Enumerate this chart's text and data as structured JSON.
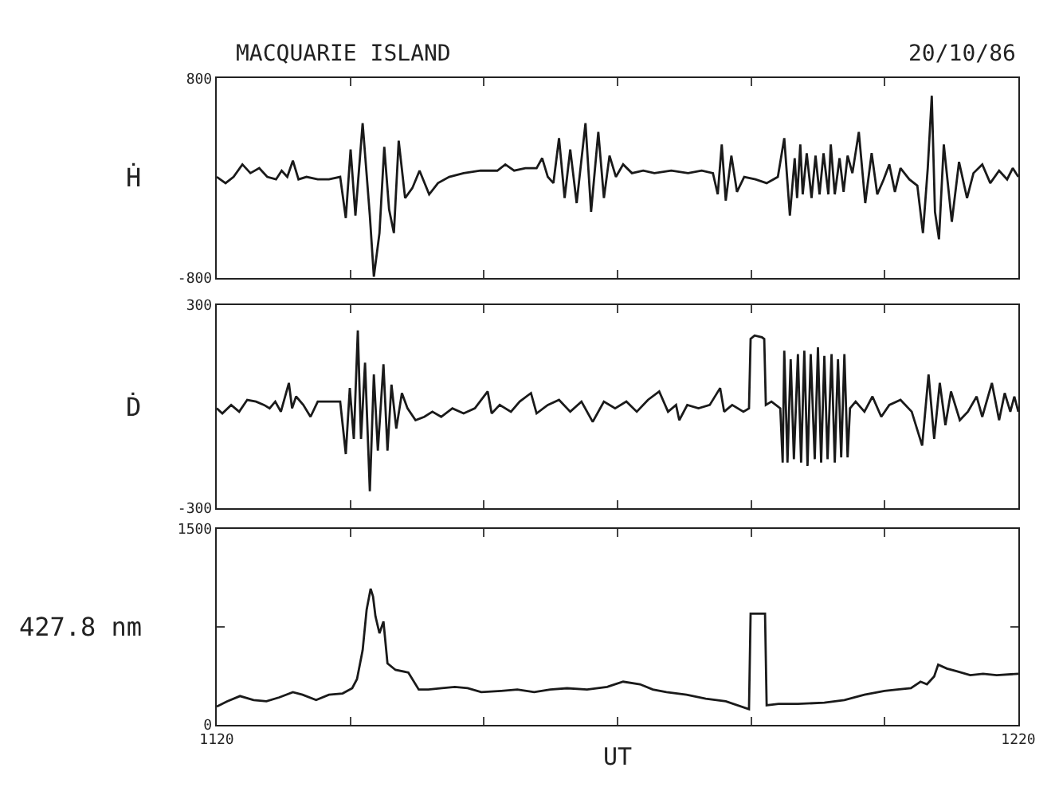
{
  "chart_data": [
    {
      "type": "line",
      "title": "MACQUARIE ISLAND",
      "annotations": [
        "20/10/86"
      ],
      "ylabel": "Ḣ",
      "tick_labels": "y",
      "marker": "none",
      "x": [
        1120.0,
        1121.1,
        1122.1,
        1123.2,
        1124.2,
        1125.3,
        1126.3,
        1127.4,
        1128.1,
        1128.8,
        1129.5,
        1130.2,
        1131.2,
        1132.6,
        1134.0,
        1135.4,
        1136.1,
        1136.7,
        1137.3,
        1138.2,
        1139.1,
        1139.6,
        1140.3,
        1140.9,
        1141.5,
        1142.1,
        1142.7,
        1143.5,
        1144.4,
        1145.3,
        1146.5,
        1147.6,
        1149.0,
        1150.8,
        1152.9,
        1155.0,
        1156.0,
        1157.1,
        1158.5,
        1159.9,
        1160.6,
        1161.3,
        1162.0,
        1162.7,
        1163.4,
        1164.1,
        1164.9,
        1166.0,
        1166.7,
        1167.6,
        1168.3,
        1169.0,
        1169.8,
        1170.7,
        1171.8,
        1173.2,
        1174.6,
        1176.7,
        1178.8,
        1180.5,
        1181.9,
        1182.5,
        1183.0,
        1183.5,
        1184.2,
        1184.9,
        1185.8,
        1187.2,
        1188.6,
        1190.0,
        1190.8,
        1191.5,
        1192.1,
        1192.4,
        1192.8,
        1193.1,
        1193.6,
        1194.2,
        1194.7,
        1195.2,
        1195.7,
        1196.3,
        1196.6,
        1197.1,
        1197.7,
        1198.2,
        1198.7,
        1199.3,
        1200.1,
        1200.9,
        1201.7,
        1202.4,
        1203.2,
        1203.9,
        1204.6,
        1205.3,
        1206.4,
        1207.4,
        1208.1,
        1208.7,
        1209.2,
        1209.6,
        1210.1,
        1210.7,
        1211.7,
        1212.6,
        1213.6,
        1214.4,
        1215.5,
        1216.5,
        1217.6,
        1218.6,
        1219.3,
        1220.0
      ],
      "series": [
        {
          "color": "#1a1a1a",
          "values": [
            10,
            -40,
            10,
            110,
            40,
            80,
            10,
            -10,
            60,
            10,
            140,
            -10,
            10,
            -10,
            -10,
            10,
            -320,
            230,
            -300,
            440,
            -300,
            -790,
            -440,
            250,
            -250,
            -440,
            300,
            -160,
            -80,
            60,
            -130,
            -40,
            10,
            40,
            60,
            60,
            110,
            60,
            80,
            80,
            160,
            10,
            -40,
            320,
            -160,
            230,
            -200,
            440,
            -270,
            370,
            -160,
            180,
            10,
            110,
            40,
            60,
            40,
            60,
            40,
            60,
            40,
            -130,
            270,
            -180,
            180,
            -110,
            10,
            -10,
            -40,
            10,
            320,
            -300,
            160,
            -160,
            270,
            -130,
            200,
            -160,
            180,
            -130,
            200,
            -130,
            270,
            -130,
            160,
            -110,
            180,
            40,
            370,
            -200,
            200,
            -130,
            -10,
            110,
            -110,
            80,
            -10,
            -60,
            -440,
            80,
            660,
            -270,
            -490,
            270,
            -350,
            130,
            -160,
            40,
            110,
            -40,
            60,
            -10,
            80,
            10
          ]
        }
      ],
      "xlim": [
        1120,
        1220
      ],
      "xticks": [
        1120,
        {
          "value": 1136.7,
          "label": null
        },
        {
          "value": 1153.3,
          "label": null
        },
        {
          "value": 1170,
          "label": null
        },
        {
          "value": 1186.7,
          "label": null
        },
        {
          "value": 1203.3,
          "label": null
        },
        1220
      ],
      "ylim": [
        -800,
        800
      ],
      "yticks": [
        -800,
        800
      ]
    },
    {
      "type": "line",
      "ylabel": "Ḋ",
      "tick_labels": "y",
      "marker": "none",
      "x": [
        1120.0,
        1120.7,
        1121.8,
        1122.8,
        1123.8,
        1124.9,
        1125.9,
        1126.6,
        1127.3,
        1128.0,
        1129.0,
        1129.4,
        1129.9,
        1130.8,
        1131.7,
        1132.6,
        1134.0,
        1135.4,
        1136.1,
        1136.6,
        1137.1,
        1137.6,
        1138.0,
        1138.5,
        1139.1,
        1139.6,
        1140.1,
        1140.8,
        1141.3,
        1141.8,
        1142.4,
        1143.1,
        1143.8,
        1144.8,
        1145.9,
        1146.9,
        1148.0,
        1149.4,
        1150.8,
        1152.2,
        1153.8,
        1154.3,
        1155.3,
        1156.7,
        1157.8,
        1159.2,
        1159.9,
        1161.3,
        1162.7,
        1164.1,
        1165.5,
        1166.9,
        1168.3,
        1169.7,
        1171.1,
        1172.4,
        1173.8,
        1175.2,
        1176.3,
        1177.3,
        1177.7,
        1178.7,
        1180.1,
        1181.5,
        1182.8,
        1183.3,
        1184.3,
        1185.7,
        1186.4,
        1186.6,
        1187.1,
        1188.0,
        1188.3,
        1188.5,
        1189.2,
        1190.3,
        1190.6,
        1190.8,
        1191.2,
        1191.6,
        1192.0,
        1192.5,
        1192.9,
        1193.3,
        1193.7,
        1194.1,
        1194.6,
        1195.0,
        1195.4,
        1195.8,
        1196.2,
        1196.7,
        1197.1,
        1197.5,
        1197.9,
        1198.3,
        1198.7,
        1199.0,
        1199.7,
        1200.8,
        1201.8,
        1202.9,
        1203.9,
        1205.3,
        1206.7,
        1208.0,
        1208.8,
        1209.5,
        1210.2,
        1210.9,
        1211.6,
        1212.7,
        1213.7,
        1214.8,
        1215.5,
        1216.7,
        1217.6,
        1218.3,
        1219.0,
        1219.5,
        1220.0
      ],
      "series": [
        {
          "color": "#1a1a1a",
          "values": [
            -5,
            -20,
            5,
            -15,
            20,
            15,
            5,
            -5,
            15,
            -15,
            70,
            -5,
            30,
            5,
            -30,
            15,
            15,
            15,
            -140,
            55,
            -95,
            225,
            -95,
            130,
            -250,
            95,
            -130,
            125,
            -130,
            65,
            -65,
            40,
            -5,
            -40,
            -30,
            -15,
            -30,
            -5,
            -20,
            -5,
            45,
            -20,
            5,
            -15,
            15,
            40,
            -20,
            5,
            20,
            -15,
            15,
            -45,
            15,
            -5,
            15,
            -15,
            20,
            45,
            -15,
            5,
            -40,
            5,
            -5,
            5,
            55,
            -15,
            5,
            -15,
            -5,
            200,
            210,
            205,
            200,
            5,
            15,
            -5,
            -165,
            165,
            -165,
            140,
            -155,
            155,
            -165,
            165,
            -175,
            155,
            -155,
            175,
            -165,
            150,
            -155,
            155,
            -165,
            140,
            -150,
            155,
            -150,
            -5,
            15,
            -15,
            30,
            -30,
            5,
            20,
            -15,
            -115,
            95,
            -95,
            70,
            -55,
            45,
            -40,
            -15,
            30,
            -30,
            70,
            -40,
            40,
            -15,
            30,
            -15
          ]
        }
      ],
      "xlim": [
        1120,
        1220
      ],
      "xticks": [
        1120,
        {
          "value": 1136.7,
          "label": null
        },
        {
          "value": 1153.3,
          "label": null
        },
        {
          "value": 1170,
          "label": null
        },
        {
          "value": 1186.7,
          "label": null
        },
        {
          "value": 1203.3,
          "label": null
        },
        1220
      ],
      "ylim": [
        -300,
        300
      ],
      "yticks": [
        -300,
        300
      ]
    },
    {
      "type": "line",
      "ylabel": "427.8 nm",
      "xlabel": "UT",
      "marker": "none",
      "x": [
        1120.0,
        1121.3,
        1122.9,
        1124.6,
        1126.2,
        1127.8,
        1129.5,
        1130.7,
        1132.4,
        1134.0,
        1135.7,
        1136.9,
        1137.5,
        1138.2,
        1138.7,
        1139.2,
        1139.5,
        1139.8,
        1140.3,
        1140.8,
        1141.3,
        1142.3,
        1143.9,
        1145.2,
        1146.4,
        1148.1,
        1149.7,
        1151.3,
        1153.0,
        1155.5,
        1157.5,
        1159.6,
        1161.6,
        1163.7,
        1166.2,
        1168.7,
        1170.7,
        1172.8,
        1174.4,
        1176.1,
        1178.6,
        1181.0,
        1183.5,
        1186.4,
        1186.6,
        1186.8,
        1188.4,
        1188.6,
        1190.1,
        1192.5,
        1195.8,
        1198.3,
        1200.8,
        1203.3,
        1204.9,
        1206.6,
        1207.8,
        1208.6,
        1209.5,
        1210.0,
        1211.1,
        1212.3,
        1214.0,
        1215.6,
        1217.3,
        1220.0
      ],
      "series": [
        {
          "color": "#1a1a1a",
          "values": [
            140,
            180,
            220,
            190,
            180,
            210,
            250,
            230,
            190,
            230,
            240,
            280,
            350,
            570,
            880,
            1040,
            980,
            830,
            700,
            790,
            470,
            420,
            400,
            270,
            270,
            280,
            290,
            280,
            250,
            260,
            270,
            250,
            270,
            280,
            270,
            290,
            330,
            310,
            270,
            250,
            230,
            200,
            180,
            120,
            850,
            850,
            850,
            150,
            160,
            160,
            170,
            190,
            230,
            260,
            270,
            280,
            330,
            310,
            370,
            460,
            430,
            410,
            380,
            390,
            380,
            390
          ]
        }
      ],
      "xlim": [
        1120,
        1220
      ],
      "xticks": [
        1120,
        {
          "value": 1136.7,
          "label": null
        },
        {
          "value": 1153.3,
          "label": null
        },
        {
          "value": 1170,
          "label": null
        },
        {
          "value": 1186.7,
          "label": null
        },
        {
          "value": 1203.3,
          "label": null
        },
        1220
      ],
      "ylim": [
        0,
        1500
      ],
      "yticks": [
        0,
        {
          "value": 750,
          "label": null
        },
        1500
      ]
    }
  ]
}
